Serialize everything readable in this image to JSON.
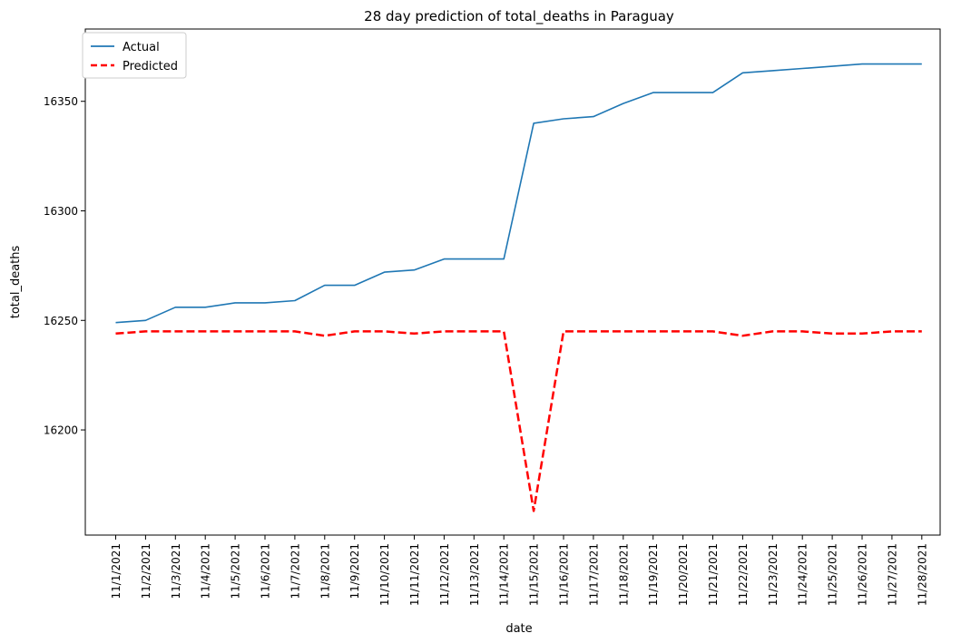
{
  "chart_data": {
    "type": "line",
    "title": "28 day prediction of total_deaths in Paraguay",
    "xlabel": "date",
    "ylabel": "total_deaths",
    "ylim": [
      16152,
      16383
    ],
    "yticks": [
      16200,
      16250,
      16300,
      16350
    ],
    "grid": false,
    "legend_position": "top-left",
    "categories": [
      "11/1/2021",
      "11/2/2021",
      "11/3/2021",
      "11/4/2021",
      "11/5/2021",
      "11/6/2021",
      "11/7/2021",
      "11/8/2021",
      "11/9/2021",
      "11/10/2021",
      "11/11/2021",
      "11/12/2021",
      "11/13/2021",
      "11/14/2021",
      "11/15/2021",
      "11/16/2021",
      "11/17/2021",
      "11/18/2021",
      "11/19/2021",
      "11/20/2021",
      "11/21/2021",
      "11/22/2021",
      "11/23/2021",
      "11/24/2021",
      "11/25/2021",
      "11/26/2021",
      "11/27/2021",
      "11/28/2021"
    ],
    "series": [
      {
        "name": "Actual",
        "color": "#1f77b4",
        "style": "solid",
        "values": [
          16249,
          16250,
          16256,
          16256,
          16258,
          16258,
          16259,
          16266,
          16266,
          16272,
          16273,
          16278,
          16278,
          16278,
          16340,
          16342,
          16343,
          16349,
          16354,
          16354,
          16354,
          16363,
          16364,
          16365,
          16366,
          16367,
          16367,
          16367
        ]
      },
      {
        "name": "Predicted",
        "color": "#ff0000",
        "style": "dashed",
        "values": [
          16244,
          16245,
          16245,
          16245,
          16245,
          16245,
          16245,
          16243,
          16245,
          16245,
          16244,
          16245,
          16245,
          16245,
          16163,
          16245,
          16245,
          16245,
          16245,
          16245,
          16245,
          16243,
          16245,
          16245,
          16244,
          16244,
          16245,
          16245
        ]
      }
    ]
  }
}
